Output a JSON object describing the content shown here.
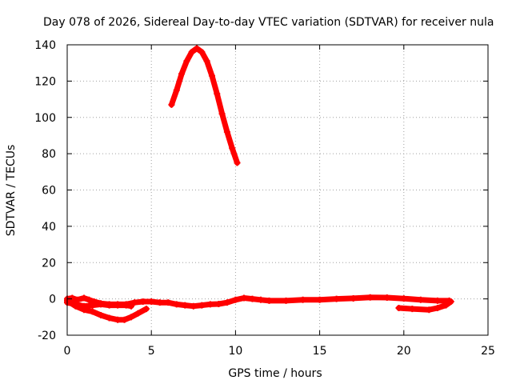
{
  "chart_data": {
    "type": "line",
    "title": "Day 078 of 2026, Sidereal Day-to-day VTEC variation (SDTVAR) for receiver nula",
    "xlabel": "GPS time / hours",
    "ylabel": "SDTVAR / TECUs",
    "xlim": [
      0,
      25
    ],
    "ylim": [
      -20,
      140
    ],
    "xticks": [
      0,
      5,
      10,
      15,
      20,
      25
    ],
    "yticks": [
      -20,
      0,
      20,
      40,
      60,
      80,
      100,
      120,
      140
    ],
    "grid": true,
    "series": [
      {
        "name": "segment-main-low",
        "color": "#ff0000",
        "points": [
          [
            0,
            0
          ],
          [
            0.3,
            0.5
          ],
          [
            0.6,
            -0.5
          ],
          [
            1,
            0.5
          ],
          [
            1.3,
            -0.5
          ],
          [
            1.6,
            -1.5
          ],
          [
            2,
            -2.5
          ],
          [
            2.5,
            -3
          ],
          [
            3,
            -3
          ],
          [
            3.5,
            -3
          ],
          [
            4,
            -2
          ],
          [
            4.5,
            -1.5
          ],
          [
            5,
            -1.5
          ],
          [
            5.5,
            -2
          ],
          [
            6,
            -2
          ],
          [
            6.5,
            -3
          ],
          [
            7,
            -3.5
          ],
          [
            7.5,
            -4
          ],
          [
            8,
            -3.5
          ],
          [
            8.5,
            -3
          ],
          [
            9,
            -2.8
          ],
          [
            9.5,
            -2
          ],
          [
            10,
            -0.5
          ],
          [
            10.5,
            0.5
          ],
          [
            11,
            0
          ],
          [
            11.5,
            -0.5
          ],
          [
            12,
            -1
          ],
          [
            13,
            -1
          ],
          [
            14,
            -0.5
          ],
          [
            15,
            -0.5
          ],
          [
            16,
            0
          ],
          [
            17,
            0.3
          ],
          [
            18,
            0.8
          ],
          [
            19,
            0.7
          ],
          [
            20,
            0.2
          ],
          [
            21,
            -0.5
          ],
          [
            22,
            -1
          ],
          [
            22.7,
            -1
          ]
        ]
      },
      {
        "name": "segment-dip-a",
        "color": "#ff0000",
        "points": [
          [
            0,
            -2
          ],
          [
            0.5,
            -3
          ],
          [
            1,
            -4
          ],
          [
            1.5,
            -3.5
          ],
          [
            2,
            -3
          ],
          [
            2.5,
            -3.5
          ],
          [
            3,
            -3.5
          ],
          [
            3.5,
            -3.5
          ],
          [
            3.8,
            -4
          ]
        ]
      },
      {
        "name": "segment-dip-b",
        "color": "#ff0000",
        "points": [
          [
            0,
            -1
          ],
          [
            0.5,
            -4
          ],
          [
            1,
            -6
          ],
          [
            1.5,
            -7
          ],
          [
            2,
            -9
          ],
          [
            2.5,
            -10.5
          ],
          [
            3,
            -11.5
          ],
          [
            3.4,
            -11.5
          ],
          [
            3.8,
            -10
          ],
          [
            4.2,
            -8
          ],
          [
            4.7,
            -5.5
          ]
        ]
      },
      {
        "name": "segment-peak",
        "color": "#ff0000",
        "points": [
          [
            6.2,
            107
          ],
          [
            6.5,
            115
          ],
          [
            6.8,
            124
          ],
          [
            7.1,
            131
          ],
          [
            7.4,
            136
          ],
          [
            7.7,
            138
          ],
          [
            8,
            136
          ],
          [
            8.3,
            131
          ],
          [
            8.6,
            123
          ],
          [
            8.9,
            113
          ],
          [
            9.2,
            102
          ],
          [
            9.5,
            92
          ],
          [
            9.8,
            83
          ],
          [
            10.1,
            75
          ]
        ]
      },
      {
        "name": "segment-late",
        "color": "#ff0000",
        "points": [
          [
            19.7,
            -5
          ],
          [
            20.5,
            -5.5
          ],
          [
            21.5,
            -6
          ],
          [
            22,
            -5
          ],
          [
            22.5,
            -3.5
          ],
          [
            22.8,
            -1.5
          ]
        ]
      }
    ]
  }
}
